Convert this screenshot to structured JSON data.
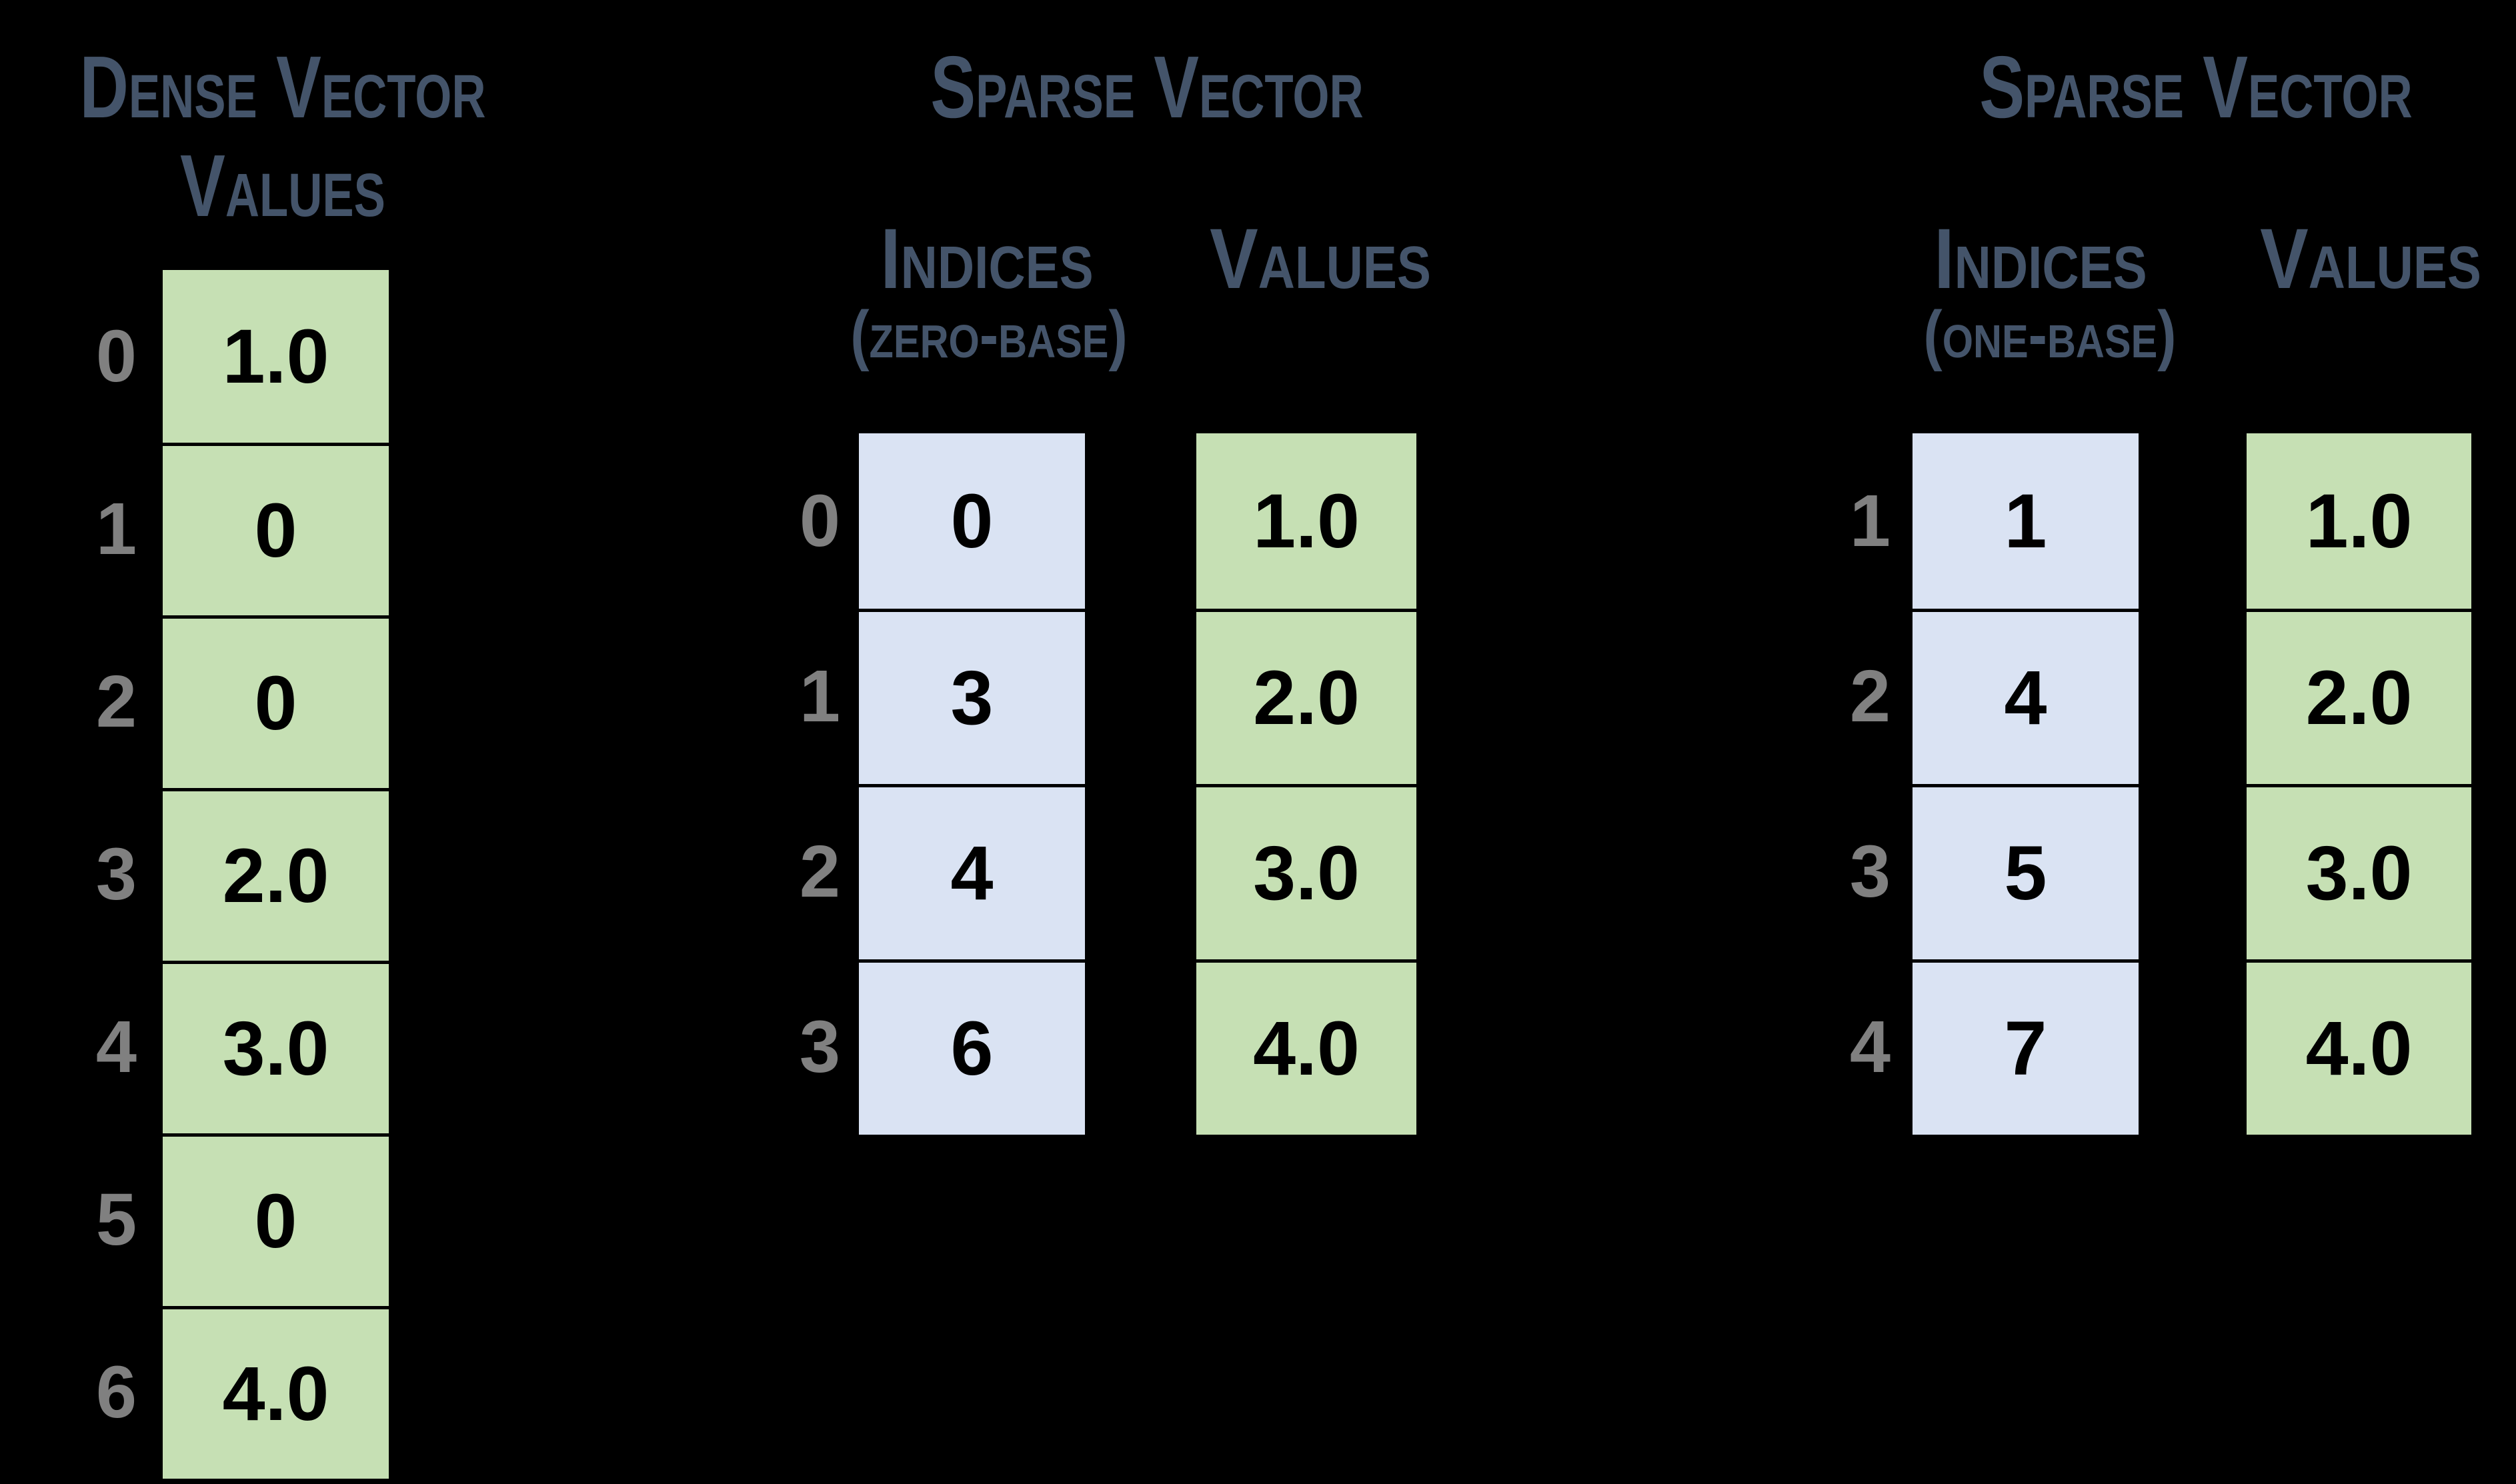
{
  "colors": {
    "background": "#000000",
    "header_text": "#44546a",
    "index_label_text": "#808080",
    "cell_value_text": "#000000",
    "green_cell_fill": "#c6e0b4",
    "blue_cell_fill": "#dae3f3",
    "cell_border": "#000000"
  },
  "dense": {
    "title_line1": "Dense Vector",
    "title_line2": "Values",
    "rows": [
      {
        "index": "0",
        "value": "1.0"
      },
      {
        "index": "1",
        "value": "0"
      },
      {
        "index": "2",
        "value": "0"
      },
      {
        "index": "3",
        "value": "2.0"
      },
      {
        "index": "4",
        "value": "3.0"
      },
      {
        "index": "5",
        "value": "0"
      },
      {
        "index": "6",
        "value": "4.0"
      }
    ]
  },
  "sparse_zero": {
    "title": "Sparse Vector",
    "indices_header": "Indices",
    "indices_subheader": "(zero-base)",
    "values_header": "Values",
    "rows": [
      {
        "label": "0",
        "index": "0",
        "value": "1.0"
      },
      {
        "label": "1",
        "index": "3",
        "value": "2.0"
      },
      {
        "label": "2",
        "index": "4",
        "value": "3.0"
      },
      {
        "label": "3",
        "index": "6",
        "value": "4.0"
      }
    ]
  },
  "sparse_one": {
    "title": "Sparse Vector",
    "indices_header": "Indices",
    "indices_subheader": "(one-base)",
    "values_header": "Values",
    "rows": [
      {
        "label": "1",
        "index": "1",
        "value": "1.0"
      },
      {
        "label": "2",
        "index": "4",
        "value": "2.0"
      },
      {
        "label": "3",
        "index": "5",
        "value": "3.0"
      },
      {
        "label": "4",
        "index": "7",
        "value": "4.0"
      }
    ]
  }
}
